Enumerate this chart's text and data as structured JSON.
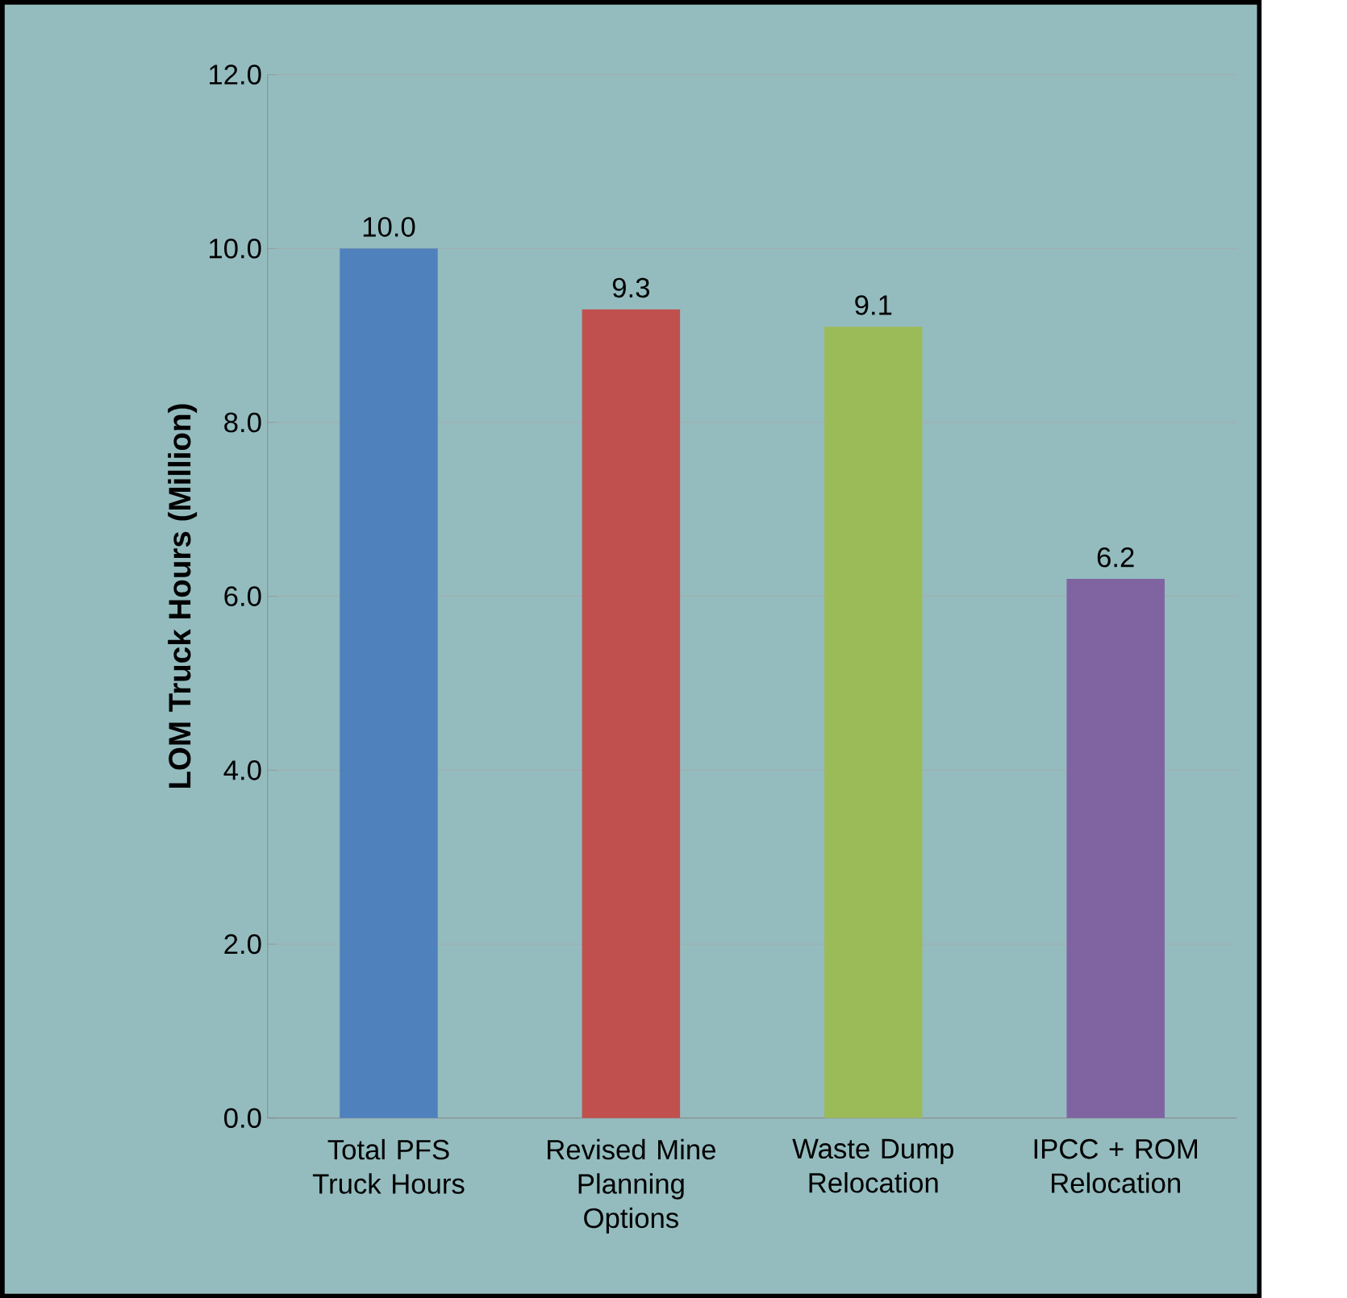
{
  "chart_data": {
    "type": "bar",
    "ylabel": "**LOM Truck Hours (Million)**",
    "categories": [
      "Total PFS Truck Hours",
      "Revised Mine Planning Options",
      "Waste Dump Relocation",
      "IPCC + ROM Relocation"
    ],
    "values": [
      10.0,
      9.3,
      9.1,
      6.2
    ],
    "value_labels": [
      "10.0",
      "9.3",
      "9.1",
      "6.2"
    ],
    "colors": [
      "#4f81bd",
      "#c0504d",
      "#9bbb59",
      "#8064a2"
    ],
    "ylim": [
      0,
      12
    ],
    "yticks": [
      {
        "value": 0,
        "label": "0.0"
      },
      {
        "value": 2,
        "label": "2.0"
      },
      {
        "value": 4,
        "label": "4.0"
      },
      {
        "value": 6,
        "label": "6.0"
      },
      {
        "value": 8,
        "label": "8.0"
      },
      {
        "value": 10,
        "label": "10.0"
      },
      {
        "value": 12,
        "label": "12.0"
      }
    ],
    "grid": "y"
  }
}
